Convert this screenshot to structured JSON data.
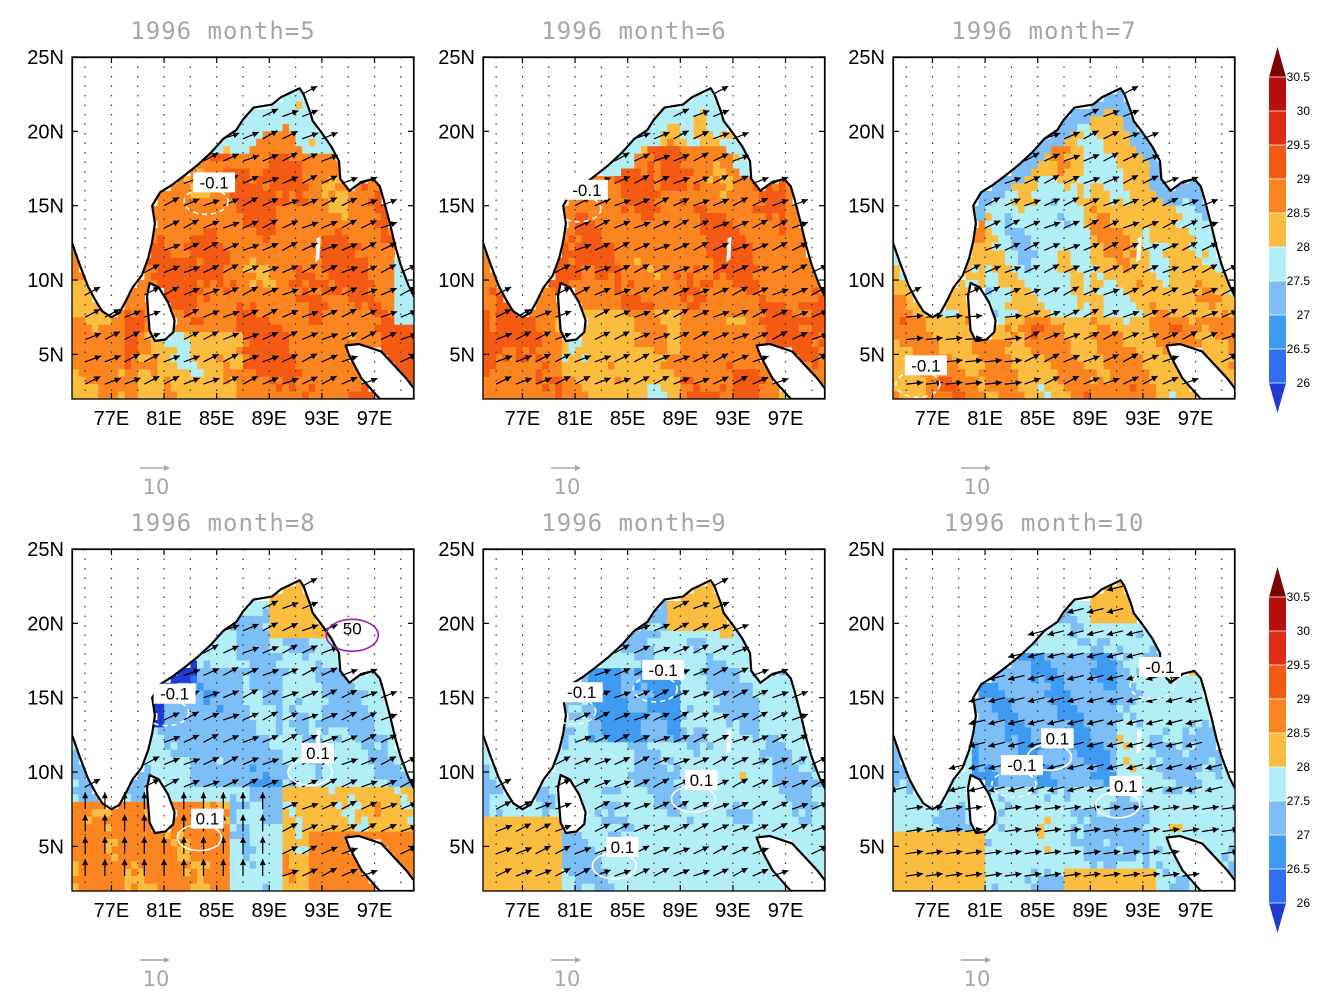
{
  "colors": {
    "land": "#ffffff",
    "coast": "#000000",
    "arrow": "#000000",
    "contour": "#ffffff",
    "rain_contour": "#9b1fb8",
    "title": "#a6a6a6"
  },
  "colorbar": {
    "levels": [
      "26",
      "26.5",
      "27",
      "27.5",
      "28",
      "28.5",
      "29",
      "29.5",
      "30",
      "30.5"
    ],
    "colors": [
      "#1f3bd1",
      "#2f6ef0",
      "#3f9bf2",
      "#7dbef7",
      "#b2eef5",
      "#fbbd3f",
      "#fb8521",
      "#f55a14",
      "#e02c12",
      "#b90f0b",
      "#7a0606"
    ],
    "under_color": "#1f3bd1",
    "over_color": "#7a0606"
  },
  "axes": {
    "lon_ticks": [
      "77E",
      "81E",
      "85E",
      "89E",
      "93E",
      "97E"
    ],
    "lat_ticks": [
      "25N",
      "20N",
      "15N",
      "10N",
      "5N"
    ]
  },
  "ref_vector_label": "10",
  "panels": [
    {
      "title": "1996  month=5",
      "sst_base": 28.9,
      "coastal_sst": 28.3,
      "labels": [
        {
          "text": "-0.1",
          "lon": 84.8,
          "lat": 16.5
        }
      ],
      "wind": "southwesterly"
    },
    {
      "title": "1996  month=6",
      "sst_base": 28.9,
      "coastal_sst": 28.2,
      "labels": [
        {
          "text": "-0.1",
          "lon": 81.9,
          "lat": 16.0
        }
      ],
      "wind": "southwesterly"
    },
    {
      "title": "1996  month=7",
      "sst_base": 28.2,
      "coastal_sst": 27.8,
      "labels": [
        {
          "text": "-0.1",
          "lon": 76.5,
          "lat": 4.2
        }
      ],
      "wind": "southwesterly"
    },
    {
      "title": "1996  month=8",
      "sst_base": 27.7,
      "coastal_sst": 26.4,
      "labels": [
        {
          "text": "-0.1",
          "lon": 81.8,
          "lat": 15.2
        },
        {
          "text": "0.1",
          "lon": 92.7,
          "lat": 11.2
        },
        {
          "text": "0.1",
          "lon": 84.3,
          "lat": 6.8
        },
        {
          "text": "50",
          "lon": 95.3,
          "lat": 19.6
        }
      ],
      "wind": "southwesterly"
    },
    {
      "title": "1996  month=9",
      "sst_base": 27.6,
      "coastal_sst": 27.1,
      "labels": [
        {
          "text": "-0.1",
          "lon": 81.5,
          "lat": 15.3
        },
        {
          "text": "-0.1",
          "lon": 87.7,
          "lat": 16.8
        },
        {
          "text": "0.1",
          "lon": 90.6,
          "lat": 9.4
        },
        {
          "text": "0.1",
          "lon": 84.6,
          "lat": 4.9
        }
      ],
      "wind": "southwesterly"
    },
    {
      "title": "1996  month=10",
      "sst_base": 27.6,
      "coastal_sst": 27.4,
      "labels": [
        {
          "text": "-0.1",
          "lon": 94.3,
          "lat": 17.0
        },
        {
          "text": "0.1",
          "lon": 86.5,
          "lat": 12.2
        },
        {
          "text": "-0.1",
          "lon": 83.8,
          "lat": 10.4
        },
        {
          "text": "0.1",
          "lon": 91.7,
          "lat": 9.0
        }
      ],
      "wind": "easterly"
    }
  ]
}
